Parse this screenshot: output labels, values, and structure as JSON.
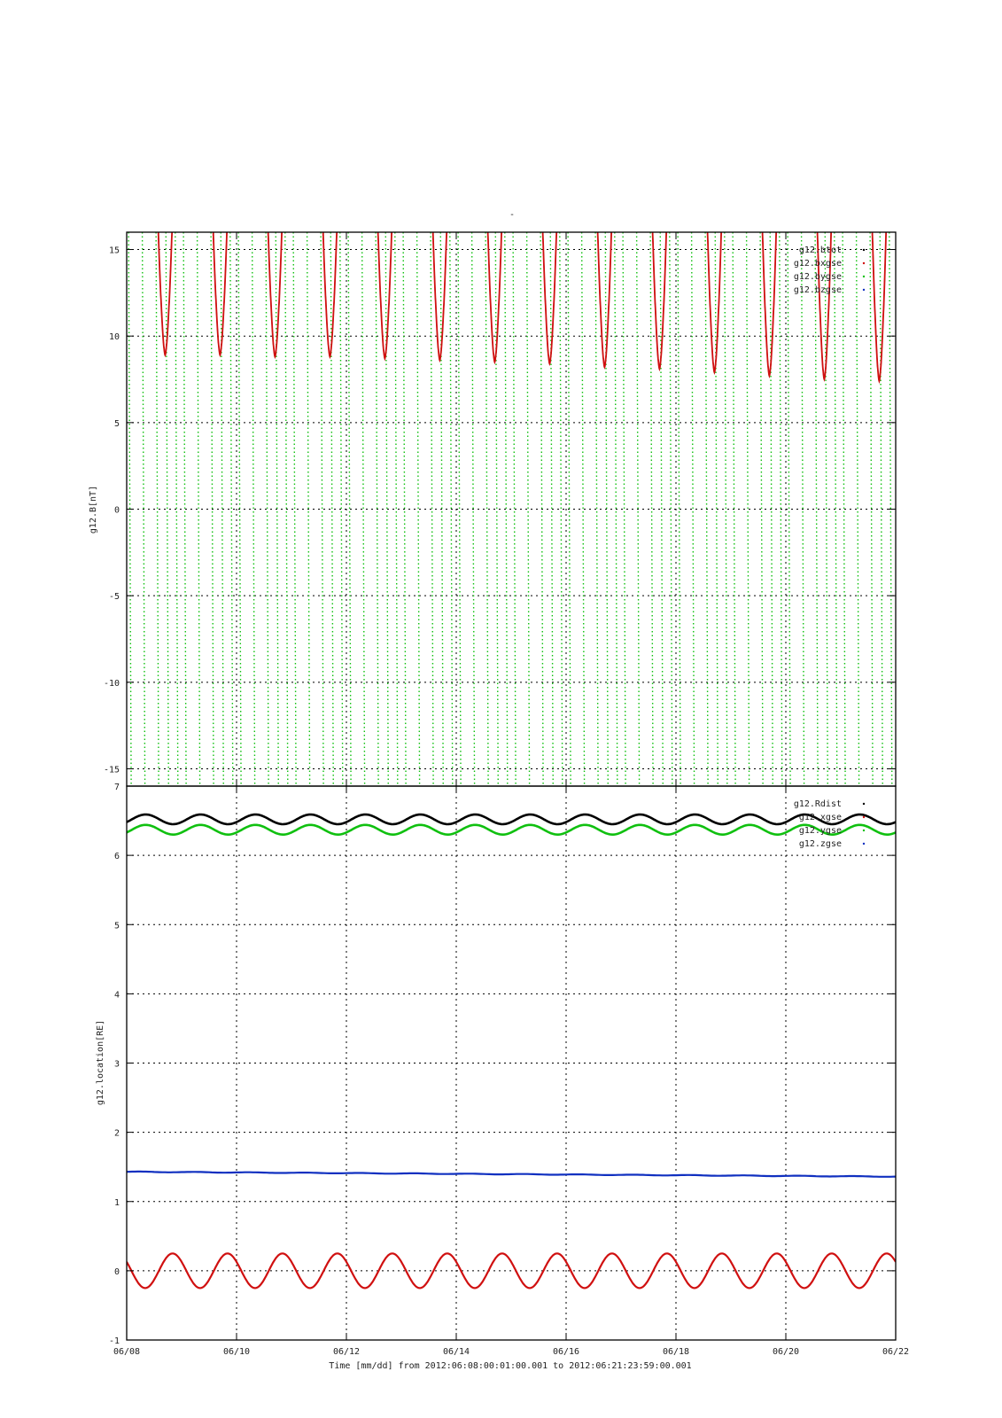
{
  "page_title": "-",
  "x_axis": {
    "ticks": [
      "06/08",
      "06/10",
      "06/12",
      "06/14",
      "06/16",
      "06/18",
      "06/20",
      "06/22"
    ],
    "label": "Time [mm/dd]  from 2012:06:08:00:01:00.001  to  2012:06:21:23:59:00.001"
  },
  "chart_data": [
    {
      "type": "line",
      "ylabel": "g12.B[nT]",
      "ylim": [
        -16,
        16
      ],
      "yticks": [
        -15,
        -10,
        -5,
        0,
        5,
        10,
        15
      ],
      "x": "days since 2012-06-08 00:00",
      "xlim": [
        0,
        14
      ],
      "grid": true,
      "legend_position": "top-right",
      "series": [
        {
          "name": "g12.btot",
          "color": "#000000",
          "description": "diurnal dips, minima ~8.9 nT at day 0.7 decreasing to ~7.4 nT at day 13.7, exceeding 16 nT between dips",
          "minima_x": [
            0.7,
            1.7,
            2.7,
            3.7,
            4.7,
            5.7,
            6.7,
            7.7,
            8.7,
            9.7,
            10.7,
            11.7,
            12.7,
            13.7
          ],
          "minima_y": [
            8.9,
            8.9,
            8.8,
            8.8,
            8.7,
            8.6,
            8.5,
            8.4,
            8.2,
            8.1,
            7.9,
            7.7,
            7.5,
            7.4
          ]
        },
        {
          "name": "g12.bxgse",
          "color": "#d01010"
        },
        {
          "name": "g12.bygse",
          "color": "#10c010"
        },
        {
          "name": "g12.bzgse",
          "color": "#1030c0"
        }
      ]
    },
    {
      "type": "line",
      "ylabel": "g12.location[RE]",
      "ylim": [
        -1,
        7
      ],
      "yticks": [
        -1,
        0,
        1,
        2,
        3,
        4,
        5,
        6,
        7
      ],
      "xlim": [
        0,
        14
      ],
      "grid": true,
      "legend_position": "top-right",
      "series": [
        {
          "name": "g12.Rdist",
          "color": "#000000",
          "mean": 6.52,
          "amplitude": 0.07,
          "period_days": 1.0
        },
        {
          "name": "g12.xgse",
          "color": "#d01010",
          "mean": 0.0,
          "amplitude": 0.25,
          "period_days": 1.0
        },
        {
          "name": "g12.ygse",
          "color": "#10c010",
          "mean": 6.37,
          "amplitude": 0.07,
          "period_days": 1.0
        },
        {
          "name": "g12.zgse",
          "color": "#1030c0",
          "start": 1.43,
          "end": 1.36
        }
      ]
    }
  ]
}
